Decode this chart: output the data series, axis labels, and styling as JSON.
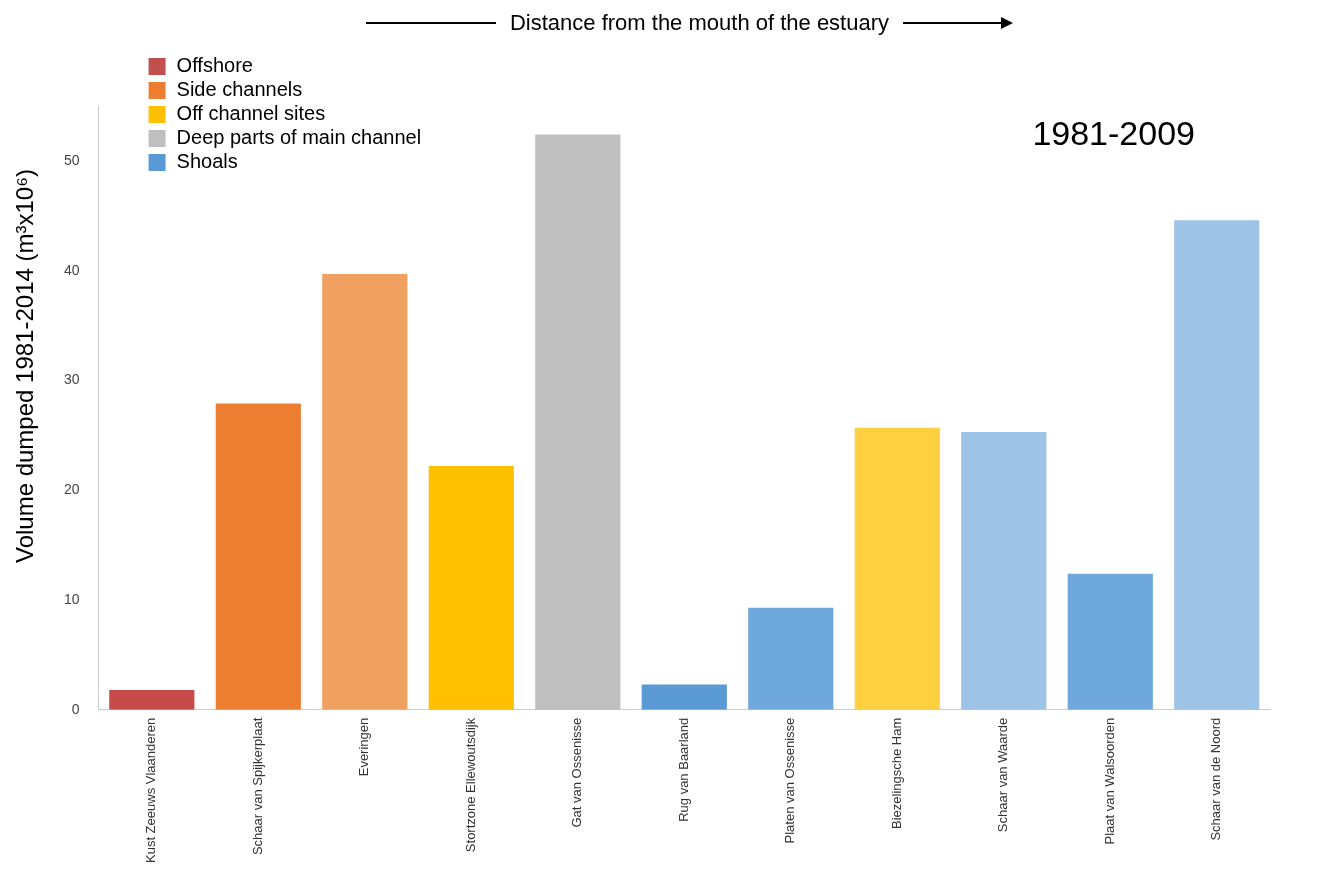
{
  "chart_data": {
    "type": "bar",
    "title": "Distance from the mouth of the estuary",
    "ylabel": "Volume dumped 1981-2014 (m³x10⁶)",
    "annotations": [
      "1981-2009"
    ],
    "categories": [
      "Kust Zeeuws Vlaanderen",
      "Schaar van Spijkerplaat",
      "Everingen",
      "Stortzone Ellewoutsdijk",
      "Gat van Ossenisse",
      "Rug van Baarland",
      "Platen van Ossenisse",
      "Biezelingsche Ham",
      "Schaar van Waarde",
      "Plaat van Walsoorden",
      "Schaar van de Noord"
    ],
    "series": [
      {
        "name": "Offshore",
        "color": "#c0504d",
        "colors": [
          "#c84b4b",
          null,
          null,
          null,
          null,
          null,
          null,
          null,
          null,
          null,
          null
        ],
        "values": [
          1.8,
          null,
          null,
          null,
          null,
          null,
          null,
          null,
          null,
          null,
          null
        ]
      },
      {
        "name": "Side channels",
        "color": "#ed7d31",
        "colors": [
          null,
          "#ed7d31",
          "#f0a060",
          null,
          null,
          null,
          null,
          null,
          null,
          null,
          null
        ],
        "values": [
          null,
          27.9,
          39.7,
          null,
          null,
          null,
          null,
          null,
          null,
          null,
          null
        ]
      },
      {
        "name": "Off channel sites",
        "color": "#ffc000",
        "colors": [
          null,
          null,
          null,
          "#ffc000",
          null,
          null,
          null,
          "#ffd040",
          null,
          null,
          null
        ],
        "values": [
          null,
          null,
          null,
          22.2,
          null,
          null,
          null,
          25.7,
          null,
          null,
          null
        ]
      },
      {
        "name": "Deep parts of main channel",
        "color": "#bfbfbf",
        "colors": [
          null,
          null,
          null,
          null,
          "#bfbfbf",
          null,
          null,
          null,
          null,
          null,
          null
        ],
        "values": [
          null,
          null,
          null,
          null,
          52.4,
          null,
          null,
          null,
          null,
          null,
          null
        ]
      },
      {
        "name": "Shoals",
        "color": "#5b9bd5",
        "colors": [
          null,
          null,
          null,
          null,
          null,
          "#5b9bd5",
          "#6fa8dc",
          null,
          "#9dc3e6",
          "#6fa8dc",
          "#9dc3e6"
        ],
        "values": [
          null,
          null,
          null,
          null,
          null,
          2.3,
          9.3,
          null,
          25.3,
          12.4,
          44.6
        ]
      }
    ],
    "stacked": true,
    "ylim": [
      0,
      55
    ],
    "yticks": [
      0,
      10,
      20,
      30,
      40,
      50
    ],
    "grid": false,
    "legend": "top left"
  }
}
